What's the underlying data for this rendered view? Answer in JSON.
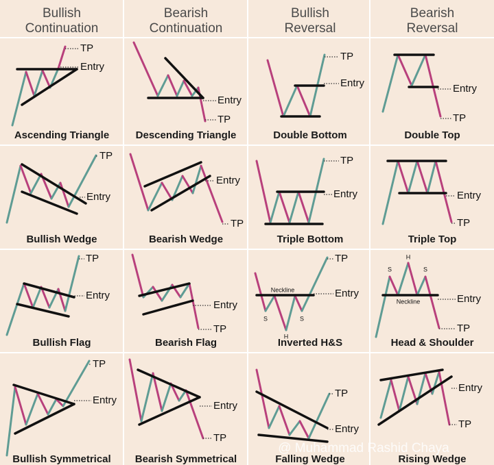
{
  "headers": [
    {
      "line1": "Bullish",
      "line2": "Continuation"
    },
    {
      "line1": "Bearish",
      "line2": "Continuation"
    },
    {
      "line1": "Bullish",
      "line2": "Reversal"
    },
    {
      "line1": "Bearish",
      "line2": "Reversal"
    }
  ],
  "cells": [
    {
      "name": "Ascending Triangle",
      "labels": [
        "TP",
        "Entry"
      ]
    },
    {
      "name": "Descending Triangle",
      "labels": [
        "Entry",
        "TP"
      ]
    },
    {
      "name": "Double Bottom",
      "labels": [
        "TP",
        "Entry"
      ]
    },
    {
      "name": "Double Top",
      "labels": [
        "Entry",
        "TP"
      ]
    },
    {
      "name": "Bullish Wedge",
      "labels": [
        "TP",
        "Entry"
      ]
    },
    {
      "name": "Bearish Wedge",
      "labels": [
        "Entry",
        "TP"
      ]
    },
    {
      "name": "Triple Bottom",
      "labels": [
        "TP",
        "Entry"
      ]
    },
    {
      "name": "Triple Top",
      "labels": [
        "Entry",
        "TP"
      ]
    },
    {
      "name": "Bullish Flag",
      "labels": [
        "TP",
        "Entry"
      ]
    },
    {
      "name": "Bearish Flag",
      "labels": [
        "Entry",
        "TP"
      ]
    },
    {
      "name": "Inverted H&S",
      "labels": [
        "TP",
        "Entry",
        "Neckline",
        "S",
        "H",
        "S"
      ]
    },
    {
      "name": "Head & Shoulder",
      "labels": [
        "S",
        "H",
        "S",
        "Neckline",
        "Entry",
        "TP"
      ]
    },
    {
      "name": "Bullish Symmetrical",
      "labels": [
        "TP",
        "Entry"
      ]
    },
    {
      "name": "Bearish Symmetrical",
      "labels": [
        "Entry",
        "TP"
      ]
    },
    {
      "name": "Falling Wedge",
      "labels": [
        "TP",
        "Entry"
      ]
    },
    {
      "name": "Rising Wedge",
      "labels": [
        "Entry",
        "TP"
      ]
    }
  ],
  "watermark": "@ Muhammad Rashid Chaya"
}
